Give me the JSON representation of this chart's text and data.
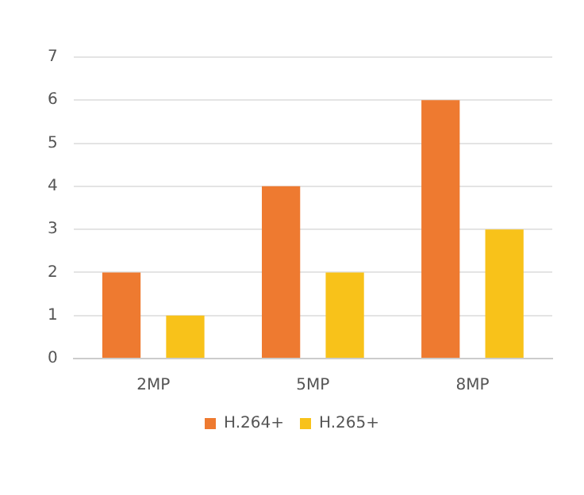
{
  "chart_data": {
    "type": "bar",
    "categories": [
      "2MP",
      "5MP",
      "8MP"
    ],
    "series": [
      {
        "name": "H.264+",
        "color": "#ee7a30",
        "values": [
          2,
          4,
          6
        ]
      },
      {
        "name": "H.265+",
        "color": "#f8c21a",
        "values": [
          1,
          2,
          3
        ]
      }
    ],
    "ylim": [
      0,
      7
    ],
    "yticks": [
      0,
      1,
      2,
      3,
      4,
      5,
      6,
      7
    ],
    "grid": "y",
    "legend": "bottom"
  }
}
